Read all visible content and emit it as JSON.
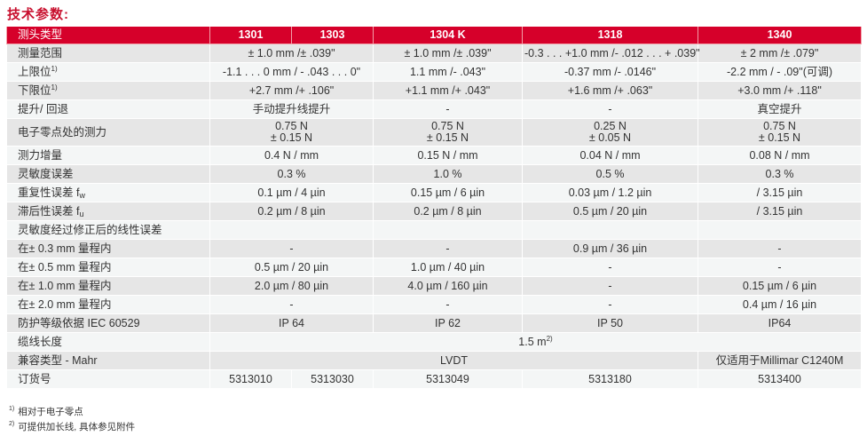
{
  "title": "技术参数:",
  "header": {
    "label": "测头类型",
    "models": [
      "1301",
      "1303",
      "1304 K",
      "1318",
      "1340"
    ]
  },
  "rows": [
    {
      "label": "测量范围",
      "cells": [
        {
          "t": "± 1.0 mm /± .039\"",
          "span": 2
        },
        {
          "t": "± 1.0 mm /± .039\""
        },
        {
          "t": "-0.3 . . . +1.0 mm /- .012 . . . + .039\""
        },
        {
          "t": "± 2 mm /± .079\""
        }
      ]
    },
    {
      "label": "上限位",
      "sup": "1)",
      "cells": [
        {
          "t": "-1.1 . . . 0 mm / - .043 . . . 0\"",
          "span": 2
        },
        {
          "t": "1.1 mm /- .043\""
        },
        {
          "t": "-0.37 mm /- .0146\""
        },
        {
          "t": "-2.2 mm / - .09\"(可调)"
        }
      ]
    },
    {
      "label": "下限位",
      "sup": "1)",
      "cells": [
        {
          "t": "+2.7 mm /+ .106\"",
          "span": 2
        },
        {
          "t": "+1.1 mm /+ .043\""
        },
        {
          "t": "+1.6 mm /+ .063\""
        },
        {
          "t": "+3.0 mm /+ .118\""
        }
      ]
    },
    {
      "label": "提升/ 回退",
      "cells": [
        {
          "t": "手动提升线提升",
          "span": 2
        },
        {
          "t": "-"
        },
        {
          "t": "-"
        },
        {
          "t": "真空提升"
        }
      ]
    },
    {
      "label": "电子零点处的测力",
      "tall": true,
      "cells": [
        {
          "t": "0.75 N",
          "t2": "± 0.15 N",
          "span": 2
        },
        {
          "t": "0.75 N",
          "t2": "± 0.15 N"
        },
        {
          "t": "0.25 N",
          "t2": "± 0.05 N"
        },
        {
          "t": "0.75 N",
          "t2": "± 0.15 N"
        }
      ]
    },
    {
      "label": "测力增量",
      "cells": [
        {
          "t": "0.4 N / mm",
          "span": 2
        },
        {
          "t": "0.15 N / mm"
        },
        {
          "t": "0.04 N / mm"
        },
        {
          "t": "0.08 N / mm"
        }
      ]
    },
    {
      "label": "灵敏度误差",
      "cells": [
        {
          "t": "0.3 %",
          "span": 2
        },
        {
          "t": "1.0 %"
        },
        {
          "t": "0.5 %"
        },
        {
          "t": "0.3 %"
        }
      ]
    },
    {
      "label": "重复性误差 f",
      "sub": "w",
      "cells": [
        {
          "t": "0.1 µm / 4 µin",
          "span": 2
        },
        {
          "t": "0.15 µm / 6 µin"
        },
        {
          "t": "0.03 µm / 1.2 µin"
        },
        {
          "t": "/ 3.15 µin"
        }
      ]
    },
    {
      "label": "滞后性误差 f",
      "sub": "u",
      "cells": [
        {
          "t": "0.2 µm / 8 µin",
          "span": 2
        },
        {
          "t": "0.2 µm / 8 µin"
        },
        {
          "t": "0.5 µm / 20 µin"
        },
        {
          "t": "/ 3.15 µin"
        }
      ]
    },
    {
      "label": "灵敏度经过修正后的线性误差",
      "cells": [
        {
          "t": "",
          "span": 2
        },
        {
          "t": ""
        },
        {
          "t": ""
        },
        {
          "t": ""
        }
      ]
    },
    {
      "label": "在± 0.3 mm 量程内",
      "cells": [
        {
          "t": "-",
          "span": 2
        },
        {
          "t": "-"
        },
        {
          "t": "0.9 µm / 36 µin"
        },
        {
          "t": "-"
        }
      ]
    },
    {
      "label": "在± 0.5 mm 量程内",
      "cells": [
        {
          "t": "0.5 µm / 20 µin",
          "span": 2
        },
        {
          "t": "1.0 µm / 40 µin"
        },
        {
          "t": "-"
        },
        {
          "t": "-"
        }
      ]
    },
    {
      "label": "在± 1.0 mm 量程内",
      "cells": [
        {
          "t": "2.0 µm / 80 µin",
          "span": 2
        },
        {
          "t": "4.0 µm / 160 µin"
        },
        {
          "t": "-"
        },
        {
          "t": "0.15 µm / 6 µin"
        }
      ]
    },
    {
      "label": "在± 2.0 mm 量程内",
      "cells": [
        {
          "t": "-",
          "span": 2
        },
        {
          "t": "-"
        },
        {
          "t": "-"
        },
        {
          "t": "0.4 µm / 16 µin"
        }
      ]
    },
    {
      "label": "防护等级依据 IEC 60529",
      "cells": [
        {
          "t": "IP 64",
          "span": 2
        },
        {
          "t": "IP 62"
        },
        {
          "t": "IP 50"
        },
        {
          "t": "IP64"
        }
      ]
    },
    {
      "label": "缆线长度",
      "cells": [
        {
          "t": "1.5 m",
          "sup": "2)",
          "span": 5
        }
      ]
    },
    {
      "label": "兼容类型 - Mahr",
      "cells": [
        {
          "t": "LVDT",
          "span": 4
        },
        {
          "t": "仅适用于Millimar C1240M"
        }
      ]
    },
    {
      "label": "订货号",
      "cells": [
        {
          "t": "5313010"
        },
        {
          "t": "5313030"
        },
        {
          "t": "5313049"
        },
        {
          "t": "5313180"
        },
        {
          "t": "5313400"
        }
      ]
    }
  ],
  "footnotes": [
    {
      "mark": "1)",
      "text": "相对于电子零点"
    },
    {
      "mark": "2)",
      "text": "可提供加长线, 具体参见附件"
    }
  ],
  "colors": {
    "header_bg": "#d6002a",
    "row_dark": "#e6e6e6",
    "row_light": "#f4f6f6",
    "title": "#c8102e"
  }
}
